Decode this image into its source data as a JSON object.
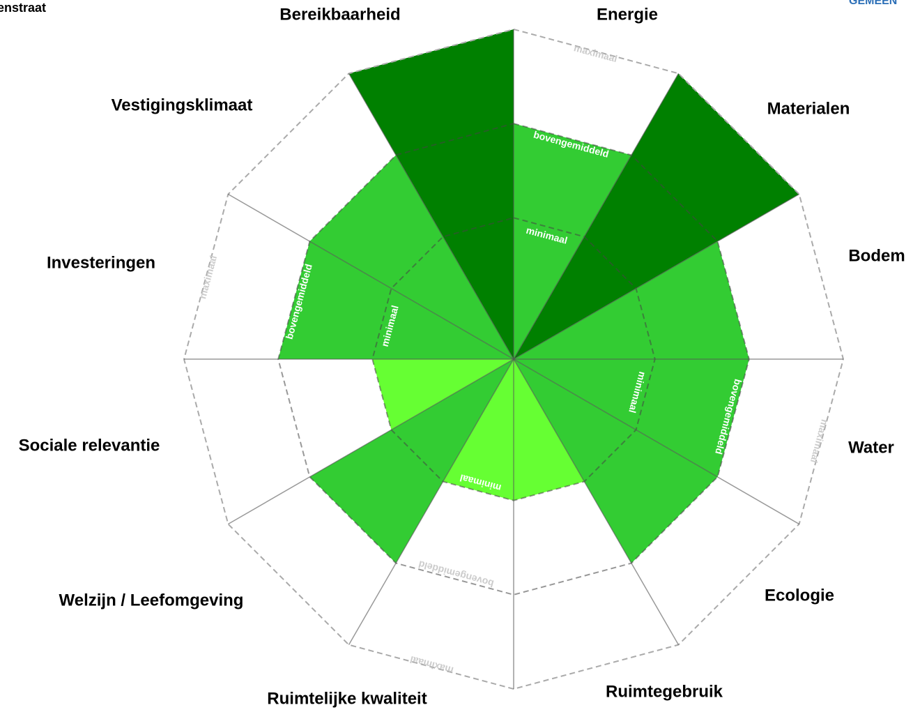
{
  "page_texts": {
    "top_left": "enstraat",
    "top_right": "GEMEEN"
  },
  "chart_data": {
    "type": "polar",
    "categories": [
      "Energie",
      "Materialen",
      "Bodem",
      "Water",
      "Ecologie",
      "Ruimtegebruik",
      "Ruimtelijke kwaliteit",
      "Welzijn / Leefomgeving",
      "Sociale relevantie",
      "Investeringen",
      "Vestigingsklimaat",
      "Bereikbaarheid"
    ],
    "values": [
      2,
      3,
      2,
      2,
      2,
      1,
      1,
      2,
      1,
      2,
      2,
      3
    ],
    "colors": [
      "#33cc33",
      "#008000",
      "#33cc33",
      "#33cc33",
      "#33cc33",
      "#66ff33",
      "#66ff33",
      "#33cc33",
      "#66ff33",
      "#33cc33",
      "#33cc33",
      "#008000"
    ],
    "rlim": [
      -0.5,
      3
    ],
    "rticks": [
      {
        "value": 1,
        "label": "minimaal"
      },
      {
        "value": 2,
        "label": "bovengemiddeld"
      },
      {
        "value": 3,
        "label": "maximaal"
      }
    ]
  }
}
